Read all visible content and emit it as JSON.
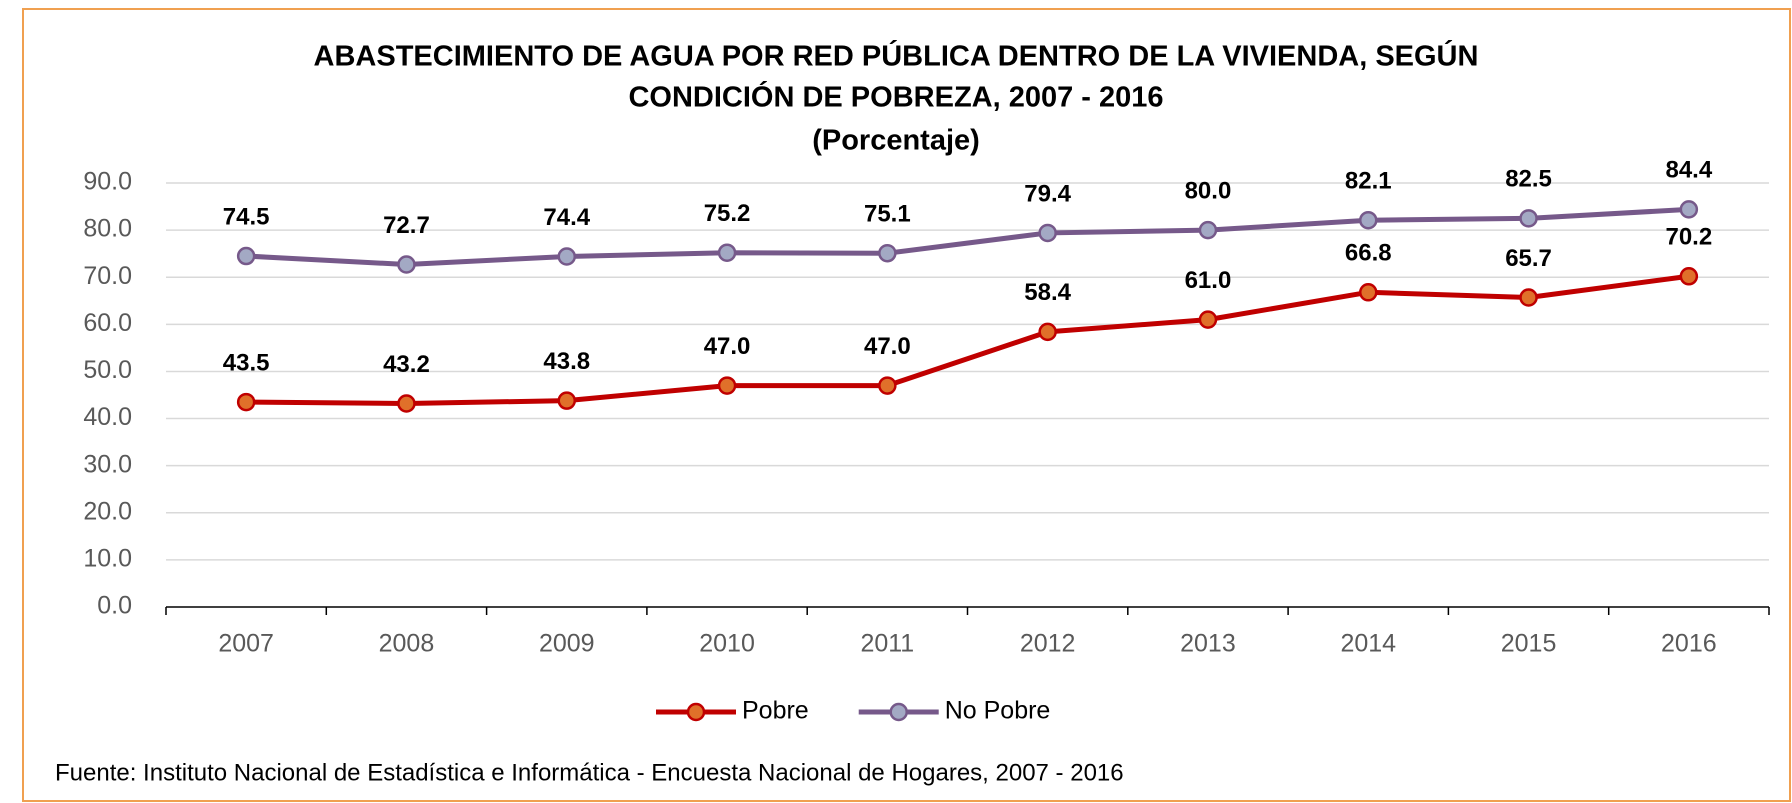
{
  "chart_data": {
    "type": "line",
    "title": [
      "ABASTECIMIENTO DE AGUA POR RED PÚBLICA DENTRO DE LA VIVIENDA, SEGÚN",
      "CONDICIÓN DE POBREZA, 2007 - 2016"
    ],
    "subtitle": "(Porcentaje)",
    "categories": [
      "2007",
      "2008",
      "2009",
      "2010",
      "2011",
      "2012",
      "2013",
      "2014",
      "2015",
      "2016"
    ],
    "series": [
      {
        "name": "Pobre",
        "color": "#c00000",
        "marker_color": "#e0702a",
        "values": [
          43.5,
          43.2,
          43.8,
          47.0,
          47.0,
          58.4,
          61.0,
          66.8,
          65.7,
          70.2
        ],
        "value_labels": [
          "43.5",
          "43.2",
          "43.8",
          "47.0",
          "47.0",
          "58.4",
          "61.0",
          "66.8",
          "65.7",
          "70.2"
        ]
      },
      {
        "name": "No Pobre",
        "color": "#76598a",
        "marker_color": "#a3a9c4",
        "values": [
          74.5,
          72.7,
          74.4,
          75.2,
          75.1,
          79.4,
          80.0,
          82.1,
          82.5,
          84.4
        ],
        "value_labels": [
          "74.5",
          "72.7",
          "74.4",
          "75.2",
          "75.1",
          "79.4",
          "80.0",
          "82.1",
          "82.5",
          "84.4"
        ]
      }
    ],
    "ylim": [
      0,
      90
    ],
    "yticks": [
      {
        "value": 0,
        "label": "0.0"
      },
      {
        "value": 10,
        "label": "10.0"
      },
      {
        "value": 20,
        "label": "20.0"
      },
      {
        "value": 30,
        "label": "30.0"
      },
      {
        "value": 40,
        "label": "40.0"
      },
      {
        "value": 50,
        "label": "50.0"
      },
      {
        "value": 60,
        "label": "60.0"
      },
      {
        "value": 70,
        "label": "70.0"
      },
      {
        "value": 80,
        "label": "80.0"
      },
      {
        "value": 90,
        "label": "90.0"
      }
    ],
    "grid": true,
    "legend": "bottom",
    "source": "Fuente: Instituto Nacional de Estadística e Informática - Encuesta Nacional de Hogares, 2007 - 2016"
  }
}
